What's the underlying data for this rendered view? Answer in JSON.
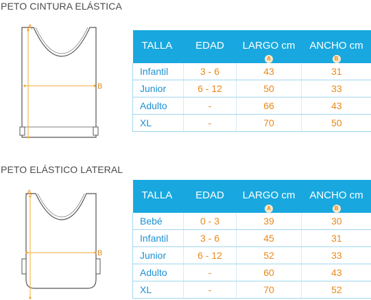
{
  "sections": [
    {
      "title": "PETO CINTURA ELÁSTICA",
      "measure_a": "A",
      "measure_b": "B",
      "headers": {
        "talla": "TALLA",
        "edad": "EDAD",
        "largo": "LARGO cm",
        "largo_badge": "A",
        "ancho": "ANCHO cm",
        "ancho_badge": "B"
      },
      "rows": [
        {
          "talla": "Infantil",
          "edad": "3 - 6",
          "largo": "43",
          "ancho": "31"
        },
        {
          "talla": "Junior",
          "edad": "6 - 12",
          "largo": "50",
          "ancho": "33"
        },
        {
          "talla": "Adulto",
          "edad": "-",
          "largo": "66",
          "ancho": "43"
        },
        {
          "talla": "XL",
          "edad": "-",
          "largo": "70",
          "ancho": "50"
        }
      ]
    },
    {
      "title": "PETO ELÁSTICO LATERAL",
      "measure_a": "A",
      "measure_b": "B",
      "headers": {
        "talla": "TALLA",
        "edad": "EDAD",
        "largo": "LARGO cm",
        "largo_badge": "A",
        "ancho": "ANCHO cm",
        "ancho_badge": "B"
      },
      "rows": [
        {
          "talla": "Bebé",
          "edad": "0 - 3",
          "largo": "39",
          "ancho": "30"
        },
        {
          "talla": "Infantil",
          "edad": "3 - 6",
          "largo": "45",
          "ancho": "31"
        },
        {
          "talla": "Junior",
          "edad": "6 - 12",
          "largo": "52",
          "ancho": "33"
        },
        {
          "talla": "Adulto",
          "edad": "-",
          "largo": "60",
          "ancho": "43"
        },
        {
          "talla": "XL",
          "edad": "-",
          "largo": "70",
          "ancho": "52"
        }
      ]
    }
  ],
  "colors": {
    "header_bg": "#18a8df",
    "size_text": "#1c90d4",
    "value_text": "#e8891c",
    "measure_line": "#f0a830",
    "outline": "#555555"
  }
}
